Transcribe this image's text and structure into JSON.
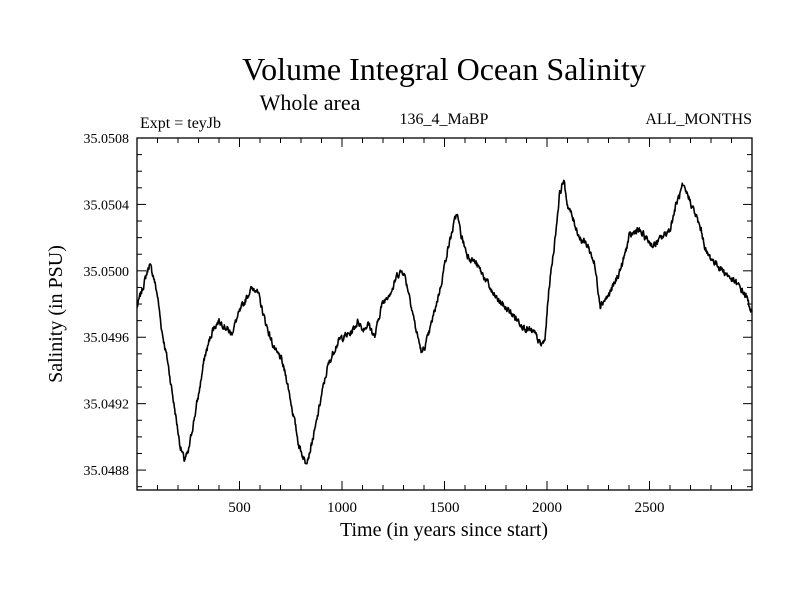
{
  "chart_data": {
    "type": "line",
    "title": "Volume Integral Ocean Salinity",
    "subtitle": "Whole area",
    "left_label": "Expt = teyJb",
    "center_label": "136_4_MaBP",
    "right_label": "ALL_MONTHS",
    "xlabel": "Time (in years since start)",
    "ylabel": "Salinity (in PSU)",
    "xlim": [
      0,
      3000
    ],
    "ylim": [
      35.04868,
      35.0508
    ],
    "x_ticks": [
      500,
      1000,
      1500,
      2000,
      2500
    ],
    "x_tick_labels": [
      "500",
      "1000",
      "1500",
      "2000",
      "2500"
    ],
    "y_ticks": [
      35.0488,
      35.0492,
      35.0496,
      35.05,
      35.0504,
      35.0508
    ],
    "y_tick_labels": [
      "35.0488",
      "35.0492",
      "35.0496",
      "35.0500",
      "35.0504",
      "35.0508"
    ],
    "grid": false,
    "series": [
      {
        "name": "salinity",
        "color": "#000000",
        "x": [
          0,
          40,
          60,
          80,
          100,
          120,
          150,
          180,
          210,
          230,
          250,
          270,
          300,
          330,
          370,
          400,
          420,
          460,
          490,
          520,
          550,
          580,
          600,
          620,
          650,
          680,
          700,
          730,
          760,
          790,
          820,
          840,
          870,
          900,
          930,
          970,
          1000,
          1040,
          1080,
          1100,
          1130,
          1160,
          1190,
          1220,
          1250,
          1270,
          1300,
          1330,
          1360,
          1390,
          1420,
          1450,
          1480,
          1510,
          1540,
          1560,
          1580,
          1610,
          1650,
          1700,
          1740,
          1780,
          1820,
          1860,
          1900,
          1940,
          1970,
          1990,
          2010,
          2040,
          2060,
          2080,
          2100,
          2130,
          2160,
          2200,
          2230,
          2260,
          2300,
          2340,
          2370,
          2400,
          2440,
          2480,
          2520,
          2560,
          2600,
          2630,
          2660,
          2690,
          2720,
          2750,
          2780,
          2820,
          2860,
          2900,
          2940,
          2970,
          3000
        ],
        "y": [
          35.04978,
          35.04995,
          35.05004,
          35.04997,
          35.04985,
          35.04965,
          35.04945,
          35.0492,
          35.04895,
          35.04886,
          35.0489,
          35.04905,
          35.04925,
          35.04948,
          35.04965,
          35.0497,
          35.04968,
          35.04962,
          35.04972,
          35.0498,
          35.04988,
          35.0499,
          35.04982,
          35.04972,
          35.0496,
          35.0495,
          35.04948,
          35.04935,
          35.04915,
          35.04895,
          35.04885,
          35.0489,
          35.04905,
          35.04925,
          35.04942,
          35.04955,
          35.0496,
          35.04962,
          35.0497,
          35.04965,
          35.04968,
          35.0496,
          35.04978,
          35.04985,
          35.0499,
          35.04998,
          35.05,
          35.04985,
          35.04965,
          35.0495,
          35.0496,
          35.04975,
          35.0499,
          35.0501,
          35.05025,
          35.05035,
          35.05022,
          35.0501,
          35.05005,
          35.04995,
          35.04985,
          35.0498,
          35.04975,
          35.0497,
          35.04965,
          35.04962,
          35.04955,
          35.04958,
          35.0499,
          35.0502,
          35.05045,
          35.05055,
          35.0504,
          35.0503,
          35.0502,
          35.05015,
          35.05005,
          35.0498,
          35.04985,
          35.04995,
          35.05005,
          35.0502,
          35.05025,
          35.0502,
          35.05015,
          35.0502,
          35.05025,
          35.0504,
          35.0505,
          35.05045,
          35.05035,
          35.05025,
          35.0501,
          35.05005,
          35.05,
          35.04995,
          35.0499,
          35.04985,
          35.04975
        ]
      }
    ]
  }
}
